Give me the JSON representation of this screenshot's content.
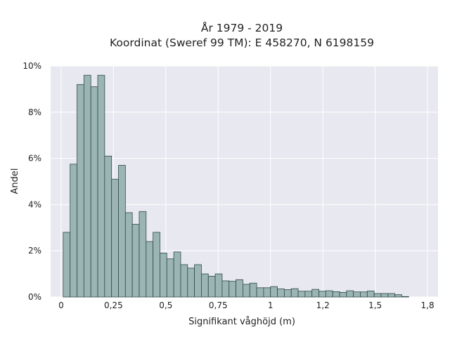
{
  "chart_data": {
    "type": "bar",
    "title_line1": "År 1979 - 2019",
    "title_line2": "Koordinat (Sweref 99 TM): E 458270, N 6198159",
    "xlabel": "Signifikant våghöjd (m)",
    "ylabel": "Andel",
    "xlim": [
      -0.05,
      1.8
    ],
    "ylim": [
      0,
      10
    ],
    "x_ticks": [
      0,
      0.25,
      0.5,
      0.75,
      1,
      1.25,
      1.5,
      1.75
    ],
    "x_tick_labels": [
      "0",
      "0,25",
      "0,5",
      "0,75",
      "1",
      "1,2",
      "1,5",
      "1,8"
    ],
    "y_ticks": [
      0,
      2,
      4,
      6,
      8,
      10
    ],
    "y_tick_labels": [
      "0%",
      "2%",
      "4%",
      "6%",
      "8%",
      "10%"
    ],
    "bin_start": 0.01,
    "bin_width": 0.033,
    "values": [
      2.8,
      5.75,
      9.2,
      9.6,
      9.1,
      9.6,
      6.1,
      5.1,
      5.7,
      3.65,
      3.15,
      3.7,
      2.4,
      2.8,
      1.9,
      1.65,
      1.95,
      1.4,
      1.25,
      1.4,
      1.0,
      0.9,
      1.0,
      0.7,
      0.68,
      0.75,
      0.55,
      0.6,
      0.4,
      0.4,
      0.45,
      0.35,
      0.32,
      0.36,
      0.25,
      0.25,
      0.33,
      0.25,
      0.27,
      0.23,
      0.2,
      0.27,
      0.22,
      0.22,
      0.26,
      0.15,
      0.15,
      0.15,
      0.1,
      0.02
    ],
    "grid": true,
    "colors": {
      "bar_fill": "#9bb5b4",
      "bar_edge": "#2f4a48",
      "plot_background": "#e8e8f0",
      "grid": "#ffffff"
    }
  }
}
